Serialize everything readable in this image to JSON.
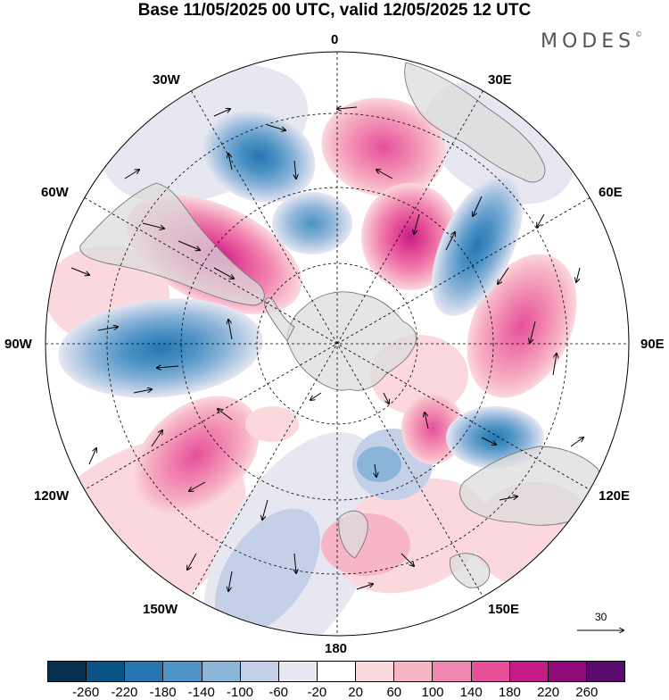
{
  "title": "Base 11/05/2025 00 UTC, valid 12/05/2025 12 UTC",
  "brand": "MODES",
  "brand_mark": "©",
  "map": {
    "projection": "south-polar-stereographic",
    "longitude_labels": [
      "0",
      "30E",
      "60E",
      "90E",
      "120E",
      "150E",
      "180",
      "150W",
      "120W",
      "90W",
      "60W",
      "30W"
    ],
    "reference_vector_label": "30",
    "colors": {
      "land": "#dcdcdc",
      "coast": "#777777",
      "grid": "#000000",
      "arrow": "#000000"
    },
    "anomalies": [
      {
        "label": "positive-south-atlantic-center",
        "value": 180
      },
      {
        "label": "positive-southern-ocean-east",
        "value": 180
      },
      {
        "label": "positive-south-pacific",
        "value": 160
      },
      {
        "label": "positive-indian-ocean",
        "value": 140
      },
      {
        "label": "positive-drake-passage",
        "value": 220
      },
      {
        "label": "negative-south-atlantic-west",
        "value": -180
      },
      {
        "label": "negative-south-indian",
        "value": -200
      },
      {
        "label": "negative-southeast-pacific",
        "value": -180
      },
      {
        "label": "negative-australia-south",
        "value": -160
      }
    ]
  },
  "colorbar": {
    "colors": [
      "#08304f",
      "#0c5486",
      "#2676b1",
      "#4d93c5",
      "#8bb4d9",
      "#c4d0e7",
      "#e7e7f2",
      "#ffffff",
      "#fbd8dd",
      "#f7b5c6",
      "#f186b1",
      "#e65099",
      "#c41c87",
      "#8e0a79",
      "#5b0a6e"
    ],
    "ticks": [
      "-260",
      "-220",
      "-180",
      "-140",
      "-100",
      "-60",
      "-20",
      "20",
      "60",
      "100",
      "140",
      "180",
      "220",
      "260"
    ]
  }
}
